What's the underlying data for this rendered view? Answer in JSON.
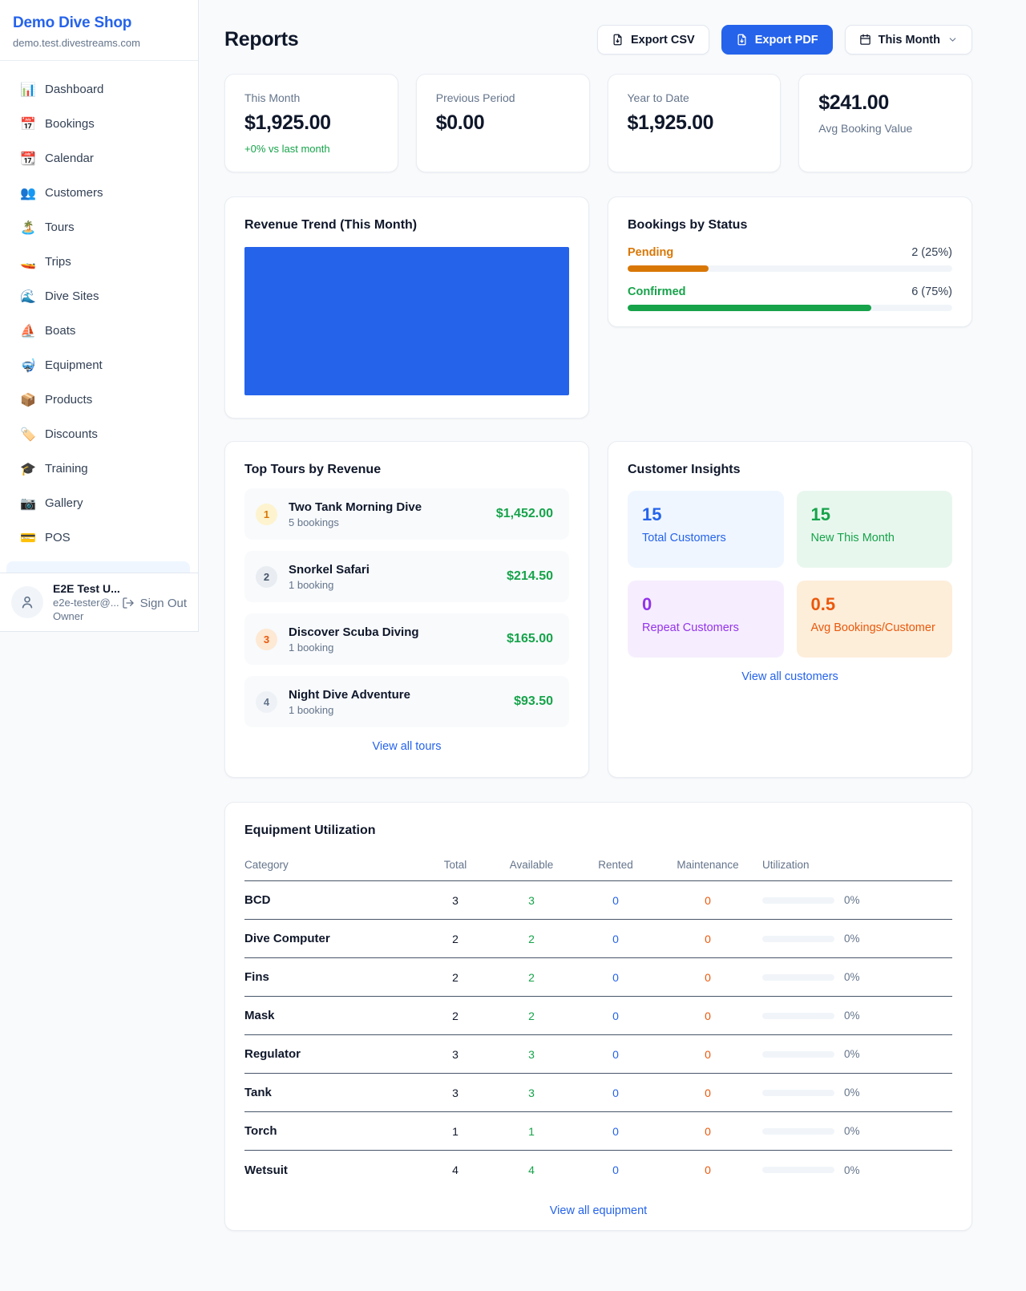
{
  "sidebar": {
    "brand": {
      "name": "Demo Dive Shop",
      "domain": "demo.test.divestreams.com"
    },
    "items": [
      {
        "icon": "📊",
        "label": "Dashboard"
      },
      {
        "icon": "📅",
        "label": "Bookings"
      },
      {
        "icon": "📆",
        "label": "Calendar"
      },
      {
        "icon": "👥",
        "label": "Customers"
      },
      {
        "icon": "🏝️",
        "label": "Tours"
      },
      {
        "icon": "🚤",
        "label": "Trips"
      },
      {
        "icon": "🌊",
        "label": "Dive Sites"
      },
      {
        "icon": "⛵",
        "label": "Boats"
      },
      {
        "icon": "🤿",
        "label": "Equipment"
      },
      {
        "icon": "📦",
        "label": "Products"
      },
      {
        "icon": "🏷️",
        "label": "Discounts"
      },
      {
        "icon": "🎓",
        "label": "Training"
      },
      {
        "icon": "📷",
        "label": "Gallery"
      },
      {
        "icon": "💳",
        "label": "POS"
      }
    ],
    "user": {
      "name": "E2E Test U...",
      "email": "e2e-tester@...",
      "role": "Owner",
      "sign_out_label": "Sign Out"
    }
  },
  "header": {
    "title": "Reports",
    "export_csv_label": "Export CSV",
    "export_pdf_label": "Export PDF",
    "period_label": "This Month"
  },
  "stats": [
    {
      "label": "This Month",
      "value": "$1,925.00",
      "delta": "+0% vs last month"
    },
    {
      "label": "Previous Period",
      "value": "$0.00"
    },
    {
      "label": "Year to Date",
      "value": "$1,925.00"
    },
    {
      "label": "Avg Booking Value",
      "value": "$241.00"
    }
  ],
  "revenue_trend": {
    "title": "Revenue Trend (This Month)",
    "bar_color": "#2563eb"
  },
  "bookings_by_status": {
    "title": "Bookings by Status",
    "rows": [
      {
        "label": "Pending",
        "value_text": "2 (25%)",
        "count": 2,
        "pct": 25,
        "color": "#d97706"
      },
      {
        "label": "Confirmed",
        "value_text": "6 (75%)",
        "count": 6,
        "pct": 75,
        "color": "#16a34a"
      }
    ]
  },
  "top_tours": {
    "title": "Top Tours by Revenue",
    "rows": [
      {
        "rank": "1",
        "name": "Two Tank Morning Dive",
        "bookings": "5 bookings",
        "amount": "$1,452.00",
        "badge_bg": "#fdf3cf",
        "badge_color": "#d97706"
      },
      {
        "rank": "2",
        "name": "Snorkel Safari",
        "bookings": "1 booking",
        "amount": "$214.50",
        "badge_bg": "#e9edf2",
        "badge_color": "#475569"
      },
      {
        "rank": "3",
        "name": "Discover Scuba Diving",
        "bookings": "1 booking",
        "amount": "$165.00",
        "badge_bg": "#fde9d4",
        "badge_color": "#ea580c"
      },
      {
        "rank": "4",
        "name": "Night Dive Adventure",
        "bookings": "1 booking",
        "amount": "$93.50",
        "badge_bg": "#eef2f6",
        "badge_color": "#64748b"
      }
    ],
    "link": "View all tours"
  },
  "customer_insights": {
    "title": "Customer Insights",
    "tiles": [
      {
        "value": "15",
        "label": "Total Customers",
        "color": "#2563eb",
        "bg": "#eff6ff"
      },
      {
        "value": "15",
        "label": "New This Month",
        "color": "#16a34a",
        "bg": "#e8f7ee"
      },
      {
        "value": "0",
        "label": "Repeat Customers",
        "color": "#9333ea",
        "bg": "#f6eefe"
      },
      {
        "value": "0.5",
        "label": "Avg Bookings/Customer",
        "color": "#ea580c",
        "bg": "#fdeeda"
      }
    ],
    "link": "View all customers"
  },
  "equipment": {
    "title": "Equipment Utilization",
    "columns": [
      "Category",
      "Total",
      "Available",
      "Rented",
      "Maintenance",
      "Utilization"
    ],
    "rows": [
      {
        "category": "BCD",
        "total": 3,
        "available": 3,
        "rented": 0,
        "maintenance": 0,
        "utilization_pct": 0,
        "utilization_label": "0%"
      },
      {
        "category": "Dive Computer",
        "total": 2,
        "available": 2,
        "rented": 0,
        "maintenance": 0,
        "utilization_pct": 0,
        "utilization_label": "0%"
      },
      {
        "category": "Fins",
        "total": 2,
        "available": 2,
        "rented": 0,
        "maintenance": 0,
        "utilization_pct": 0,
        "utilization_label": "0%"
      },
      {
        "category": "Mask",
        "total": 2,
        "available": 2,
        "rented": 0,
        "maintenance": 0,
        "utilization_pct": 0,
        "utilization_label": "0%"
      },
      {
        "category": "Regulator",
        "total": 3,
        "available": 3,
        "rented": 0,
        "maintenance": 0,
        "utilization_pct": 0,
        "utilization_label": "0%"
      },
      {
        "category": "Tank",
        "total": 3,
        "available": 3,
        "rented": 0,
        "maintenance": 0,
        "utilization_pct": 0,
        "utilization_label": "0%"
      },
      {
        "category": "Torch",
        "total": 1,
        "available": 1,
        "rented": 0,
        "maintenance": 0,
        "utilization_pct": 0,
        "utilization_label": "0%"
      },
      {
        "category": "Wetsuit",
        "total": 4,
        "available": 4,
        "rented": 0,
        "maintenance": 0,
        "utilization_pct": 0,
        "utilization_label": "0%"
      }
    ],
    "link": "View all equipment"
  }
}
